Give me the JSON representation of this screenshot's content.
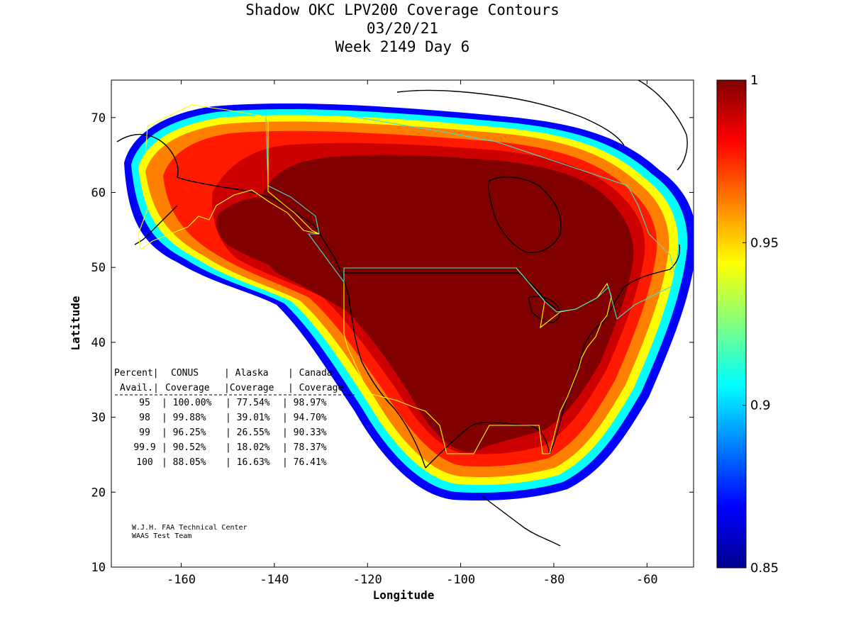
{
  "title": {
    "line1": "Shadow OKC LPV200 Coverage Contours",
    "line2": "03/20/21",
    "line3": "Week 2149 Day 6"
  },
  "axes": {
    "xlabel": "Longitude",
    "ylabel": "Latitude",
    "xlim": [
      -175,
      -50
    ],
    "ylim": [
      10,
      75
    ],
    "xticks": [
      "-160",
      "-140",
      "-120",
      "-100",
      "-80",
      "-60"
    ],
    "xtick_values": [
      -160,
      -140,
      -120,
      -100,
      -80,
      -60
    ],
    "yticks": [
      "10",
      "20",
      "30",
      "40",
      "50",
      "60",
      "70"
    ],
    "ytick_values": [
      10,
      20,
      30,
      40,
      50,
      60,
      70
    ]
  },
  "colorbar": {
    "colormap": "jet",
    "range": [
      0.85,
      1
    ],
    "labels": [
      "1",
      "0.95",
      "0.9",
      "0.85"
    ],
    "label_values": [
      1,
      0.95,
      0.9,
      0.85
    ]
  },
  "table": {
    "header1": [
      "Percent|",
      "CONUS",
      "| Alaska",
      "| Canada"
    ],
    "header2": [
      "Avail.|",
      "Coverage",
      "|Coverage",
      "| Coverage"
    ],
    "rows": [
      {
        "avail": "95",
        "conus": "100.00%",
        "alaska": "77.54%",
        "canada": "98.97%"
      },
      {
        "avail": "98",
        "conus": "99.88%",
        "alaska": "39.01%",
        "canada": "94.70%"
      },
      {
        "avail": "99",
        "conus": "96.25%",
        "alaska": "26.55%",
        "canada": "90.33%"
      },
      {
        "avail": "99.9",
        "conus": "90.52%",
        "alaska": "18.02%",
        "canada": "78.37%"
      },
      {
        "avail": "100",
        "conus": "88.05%",
        "alaska": "16.63%",
        "canada": "76.41%"
      }
    ]
  },
  "credit": {
    "line1": "W.J.H. FAA Technical Center",
    "line2": "WAAS Test Team"
  },
  "colors": {
    "dark_red": "#800000",
    "red": "#ff1a00",
    "orange": "#ff8000",
    "yellow": "#ffff00",
    "cyan": "#00ffff",
    "blue": "#0000ff",
    "navy": "#00008f",
    "service_volume_yellow": "#ffff00",
    "service_volume_cyan": "#40e0d0"
  }
}
